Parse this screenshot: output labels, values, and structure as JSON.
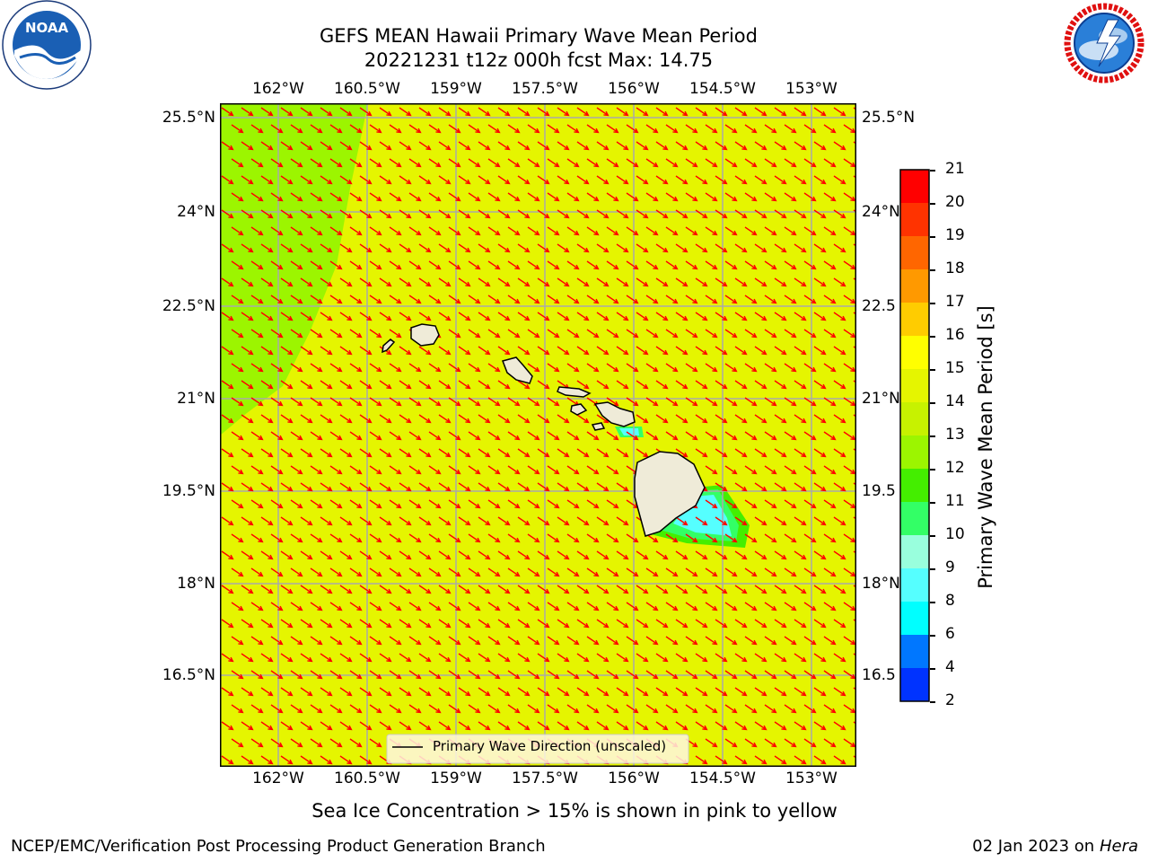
{
  "header": {
    "title_line1": "GEFS MEAN Hawaii Primary Wave Mean Period",
    "title_line2": "20221231 t12z 000h fcst   Max: 14.75"
  },
  "logos": {
    "noaa_text": "NOAA",
    "noaa_ring": "NATIONAL OCEANIC AND ATMOSPHERIC ADMINISTRATION · U.S. DEPARTMENT OF COMMERCE",
    "nws_ring": "NATIONAL WEATHER SERVICE"
  },
  "map": {
    "lon_ticks": [
      "162°W",
      "160.5°W",
      "159°W",
      "157.5°W",
      "156°W",
      "154.5°W",
      "153°W"
    ],
    "lat_ticks_left": [
      "25.5°N",
      "24°N",
      "22.5°N",
      "21°N",
      "19.5°N",
      "18°N",
      "16.5°N"
    ],
    "lat_ticks_right": [
      "25.5°N",
      "24°N",
      "22.5",
      "21°N",
      "19.5",
      "18°N",
      "16.5"
    ],
    "legend_label": "Primary Wave Direction (unscaled)",
    "field_color": "#e5f500",
    "low_period_color": "#9cf500",
    "arrow_color": "#ff0000",
    "land_color": "#efebd8",
    "grid_color": "#aaaaaa"
  },
  "colorbar": {
    "label": "Primary Wave Mean Period [s]",
    "ticks": [
      "21",
      "20",
      "19",
      "18",
      "17",
      "16",
      "15",
      "14",
      "13",
      "12",
      "11",
      "10",
      "9",
      "8",
      "6",
      "4",
      "2"
    ],
    "bands": [
      "#ff0000",
      "#ff3300",
      "#ff6600",
      "#ff9900",
      "#ffcc00",
      "#ffff00",
      "#e5f500",
      "#c7f200",
      "#9cf500",
      "#44ee00",
      "#33ff66",
      "#99ffdd",
      "#55ffff",
      "#00ffff",
      "#0077ff",
      "#0033ff"
    ]
  },
  "caption": "Sea Ice Concentration > 15% is shown in pink to yellow",
  "footer": {
    "left": "NCEP/EMC/Verification Post Processing Product Generation Branch",
    "right_date": "02 Jan 2023 on ",
    "right_machine": "Hera"
  }
}
